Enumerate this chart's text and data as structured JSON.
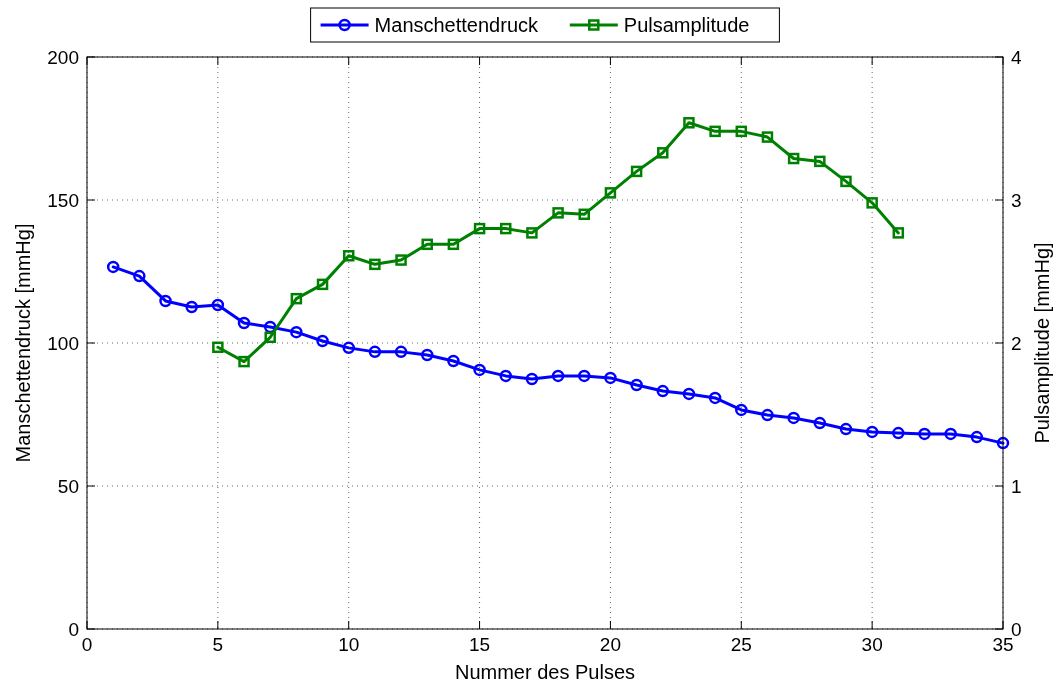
{
  "chart_data": {
    "type": "line",
    "xlabel": "Nummer des Pulses",
    "ylabel": "Manschettendruck [mmHg]",
    "y2label": "Pulsamplitude [mmHg]",
    "xlim": [
      0,
      35
    ],
    "xticks": [
      0,
      5,
      10,
      15,
      20,
      25,
      30,
      35
    ],
    "ylim": [
      0,
      200
    ],
    "yticks": [
      0,
      50,
      100,
      150,
      200
    ],
    "y2lim": [
      0,
      4
    ],
    "y2ticks": [
      0,
      1,
      2,
      3,
      4
    ],
    "grid": true,
    "legend": "top",
    "line_style": "solid",
    "series": [
      {
        "name": "Manschettendruck",
        "color": "#0000ff",
        "marker": "circle",
        "x": [
          1,
          2,
          3,
          4,
          5,
          6,
          7,
          8,
          9,
          10,
          11,
          12,
          13,
          14,
          15,
          16,
          17,
          18,
          19,
          20,
          21,
          22,
          23,
          24,
          25,
          26,
          27,
          28,
          29,
          30,
          31,
          32,
          33,
          34,
          35
        ],
        "values": [
          126.6,
          123.4,
          114.7,
          112.6,
          113.3,
          107,
          105.6,
          103.8,
          100.7,
          98.3,
          96.9,
          96.9,
          95.8,
          93.7,
          90.6,
          88.5,
          87.4,
          88.5,
          88.5,
          87.8,
          85.3,
          83.2,
          82.2,
          80.8,
          76.6,
          74.8,
          73.8,
          72,
          69.9,
          68.9,
          68.5,
          68.2,
          68.2,
          67.1,
          65
        ]
      },
      {
        "name": "Pulsamplitude",
        "color": "#008000",
        "marker": "square",
        "axis": "y2",
        "x": [
          5,
          6,
          7,
          8,
          9,
          10,
          11,
          12,
          13,
          14,
          15,
          16,
          17,
          18,
          19,
          20,
          21,
          22,
          23,
          24,
          25,
          26,
          27,
          28,
          29,
          30,
          31
        ],
        "values": [
          1.97,
          1.87,
          2.04,
          2.31,
          2.41,
          2.61,
          2.55,
          2.58,
          2.69,
          2.69,
          2.8,
          2.8,
          2.77,
          2.91,
          2.9,
          3.05,
          3.2,
          3.33,
          3.54,
          3.48,
          3.48,
          3.44,
          3.29,
          3.27,
          3.13,
          2.98,
          2.77
        ]
      }
    ]
  }
}
